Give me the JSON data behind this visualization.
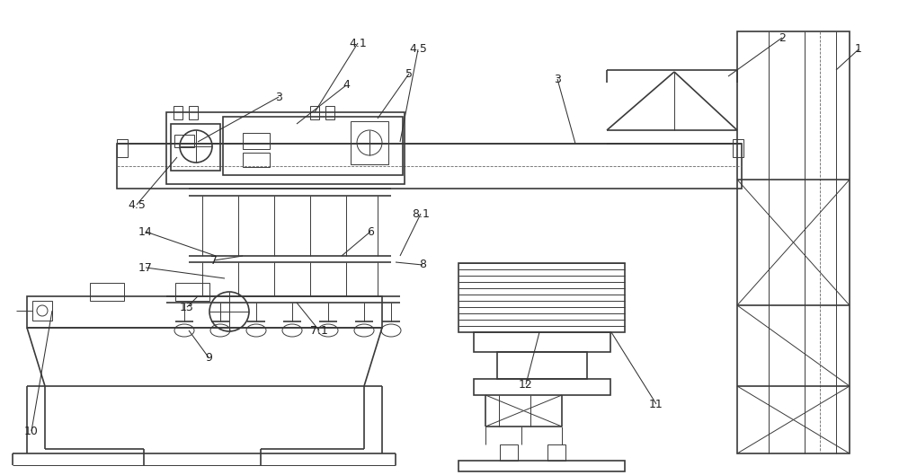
{
  "bg_color": "#ffffff",
  "lc": "#3a3a3a",
  "lw": 1.2,
  "tlw": 0.7,
  "ann_lw": 0.75
}
